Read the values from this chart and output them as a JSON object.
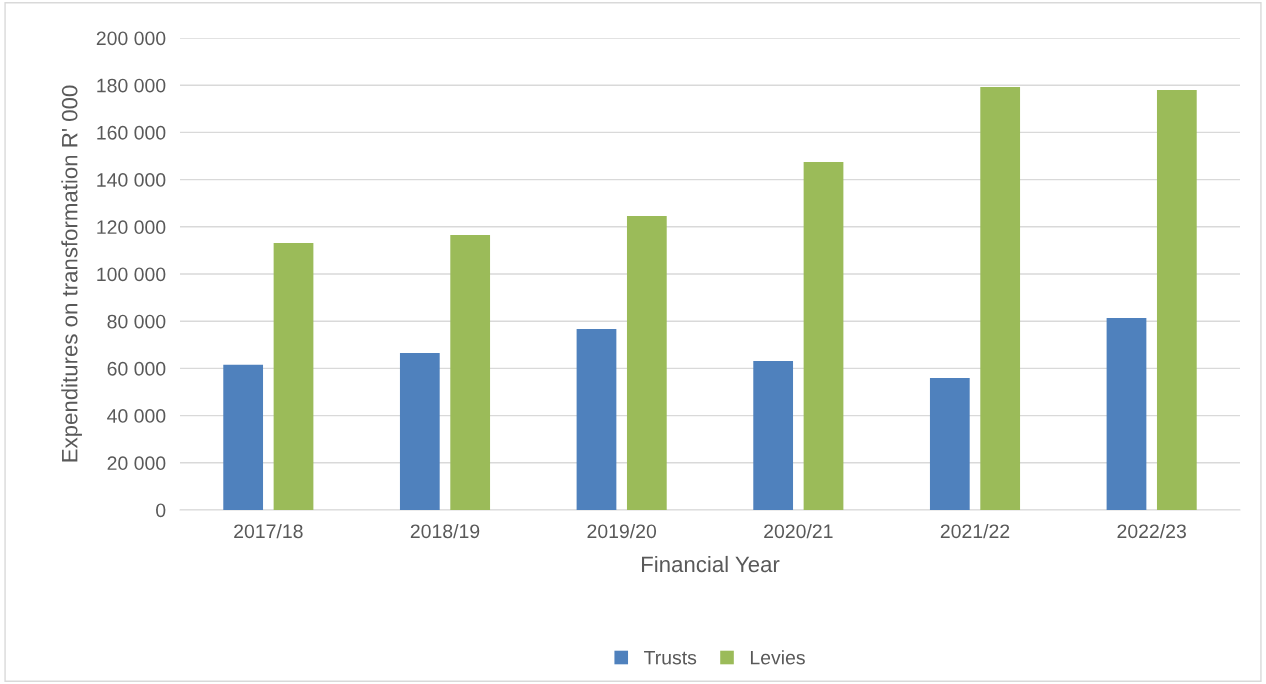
{
  "chart_data": {
    "type": "bar",
    "xlabel": "Financial Year",
    "ylabel": "Expenditures on transformation R' 000",
    "categories": [
      "2017/18",
      "2018/19",
      "2019/20",
      "2020/21",
      "2021/22",
      "2022/23"
    ],
    "series": [
      {
        "name": "Trusts",
        "color": "#4f81bd",
        "values": [
          61500,
          66500,
          76700,
          63100,
          55900,
          81400
        ]
      },
      {
        "name": "Levies",
        "color": "#9bbb59",
        "values": [
          113100,
          116500,
          124600,
          147500,
          179200,
          178000
        ]
      }
    ],
    "ylim": [
      0,
      200000
    ],
    "yticks": [
      {
        "value": 0,
        "label": "0"
      },
      {
        "value": 20000,
        "label": "20 000"
      },
      {
        "value": 40000,
        "label": "40 000"
      },
      {
        "value": 60000,
        "label": "60 000"
      },
      {
        "value": 80000,
        "label": "80 000"
      },
      {
        "value": 100000,
        "label": "100 000"
      },
      {
        "value": 120000,
        "label": "120 000"
      },
      {
        "value": 140000,
        "label": "140 000"
      },
      {
        "value": 160000,
        "label": "160 000"
      },
      {
        "value": 180000,
        "label": "180 000"
      },
      {
        "value": 200000,
        "label": "200 000"
      }
    ],
    "grid": "y",
    "legend": "bottom"
  }
}
